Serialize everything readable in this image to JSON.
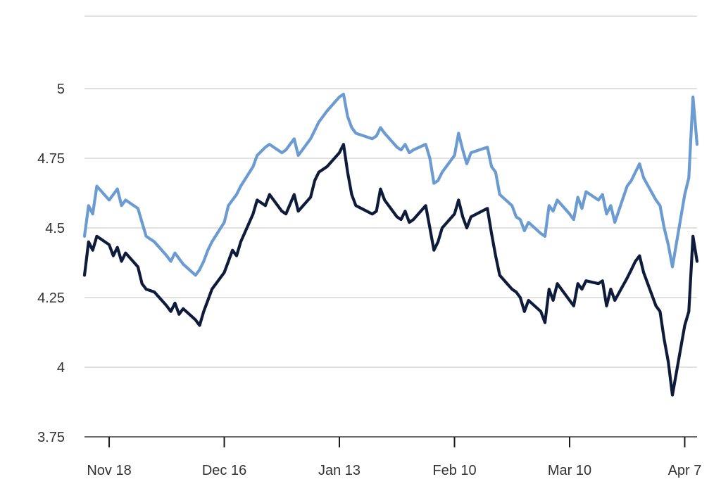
{
  "chart_data": {
    "type": "line",
    "title": "",
    "xlabel": "",
    "ylabel": "",
    "ylim": [
      3.75,
      5.25
    ],
    "yticks": [
      3.75,
      4,
      4.25,
      4.5,
      4.75,
      5
    ],
    "ytick_labels": [
      "3.75",
      "4",
      "4.25",
      "4.5",
      "4.75",
      "5"
    ],
    "x_range": [
      "2024-11-12",
      "2025-04-10"
    ],
    "xticks": [
      "2024-11-18",
      "2024-12-16",
      "2025-01-13",
      "2025-02-10",
      "2025-03-10",
      "2025-04-07"
    ],
    "xtick_labels": [
      "Nov 18",
      "Dec 16",
      "Jan 13",
      "Feb 10",
      "Mar 10",
      "Apr 7"
    ],
    "grid": true,
    "legend": "none",
    "colors": {
      "upper": "#6b9bd1",
      "lower": "#0f1b3a",
      "grid": "#cfcfcf",
      "axis": "#3a3a3a"
    },
    "series": [
      {
        "color": "#6b9bd1",
        "x": [
          "2024-11-12",
          "2024-11-13",
          "2024-11-14",
          "2024-11-15",
          "2024-11-18",
          "2024-11-19",
          "2024-11-20",
          "2024-11-21",
          "2024-11-22",
          "2024-11-25",
          "2024-11-26",
          "2024-11-27",
          "2024-11-29",
          "2024-12-02",
          "2024-12-03",
          "2024-12-04",
          "2024-12-05",
          "2024-12-06",
          "2024-12-09",
          "2024-12-10",
          "2024-12-11",
          "2024-12-12",
          "2024-12-13",
          "2024-12-16",
          "2024-12-17",
          "2024-12-18",
          "2024-12-19",
          "2024-12-20",
          "2024-12-23",
          "2024-12-24",
          "2024-12-26",
          "2024-12-27",
          "2024-12-30",
          "2024-12-31",
          "2025-01-02",
          "2025-01-03",
          "2025-01-06",
          "2025-01-07",
          "2025-01-08",
          "2025-01-10",
          "2025-01-13",
          "2025-01-14",
          "2025-01-15",
          "2025-01-16",
          "2025-01-17",
          "2025-01-21",
          "2025-01-22",
          "2025-01-23",
          "2025-01-24",
          "2025-01-27",
          "2025-01-28",
          "2025-01-29",
          "2025-01-30",
          "2025-01-31",
          "2025-02-03",
          "2025-02-04",
          "2025-02-05",
          "2025-02-06",
          "2025-02-07",
          "2025-02-10",
          "2025-02-11",
          "2025-02-12",
          "2025-02-13",
          "2025-02-14",
          "2025-02-18",
          "2025-02-19",
          "2025-02-20",
          "2025-02-21",
          "2025-02-24",
          "2025-02-25",
          "2025-02-26",
          "2025-02-27",
          "2025-02-28",
          "2025-03-03",
          "2025-03-04",
          "2025-03-05",
          "2025-03-06",
          "2025-03-07",
          "2025-03-10",
          "2025-03-11",
          "2025-03-12",
          "2025-03-13",
          "2025-03-14",
          "2025-03-17",
          "2025-03-18",
          "2025-03-19",
          "2025-03-20",
          "2025-03-21",
          "2025-03-24",
          "2025-03-25",
          "2025-03-26",
          "2025-03-27",
          "2025-03-28",
          "2025-03-31",
          "2025-04-01",
          "2025-04-02",
          "2025-04-03",
          "2025-04-04",
          "2025-04-07",
          "2025-04-08",
          "2025-04-09",
          "2025-04-10"
        ],
        "values": [
          4.47,
          4.58,
          4.55,
          4.65,
          4.6,
          4.62,
          4.64,
          4.58,
          4.6,
          4.57,
          4.52,
          4.47,
          4.45,
          4.4,
          4.38,
          4.41,
          4.39,
          4.37,
          4.33,
          4.35,
          4.38,
          4.42,
          4.45,
          4.52,
          4.58,
          4.6,
          4.62,
          4.65,
          4.72,
          4.76,
          4.79,
          4.8,
          4.77,
          4.78,
          4.82,
          4.76,
          4.82,
          4.85,
          4.88,
          4.92,
          4.97,
          4.98,
          4.9,
          4.86,
          4.84,
          4.82,
          4.83,
          4.86,
          4.84,
          4.79,
          4.78,
          4.8,
          4.77,
          4.78,
          4.8,
          4.75,
          4.66,
          4.67,
          4.7,
          4.76,
          4.84,
          4.78,
          4.73,
          4.77,
          4.79,
          4.72,
          4.7,
          4.62,
          4.58,
          4.54,
          4.53,
          4.49,
          4.52,
          4.48,
          4.47,
          4.58,
          4.56,
          4.6,
          4.55,
          4.53,
          4.61,
          4.57,
          4.63,
          4.6,
          4.62,
          4.55,
          4.58,
          4.52,
          4.65,
          4.67,
          4.7,
          4.73,
          4.68,
          4.6,
          4.58,
          4.5,
          4.44,
          4.36,
          4.62,
          4.68,
          4.97,
          4.8
        ]
      },
      {
        "color": "#0f1b3a",
        "x": [
          "2024-11-12",
          "2024-11-13",
          "2024-11-14",
          "2024-11-15",
          "2024-11-18",
          "2024-11-19",
          "2024-11-20",
          "2024-11-21",
          "2024-11-22",
          "2024-11-25",
          "2024-11-26",
          "2024-11-27",
          "2024-11-29",
          "2024-12-02",
          "2024-12-03",
          "2024-12-04",
          "2024-12-05",
          "2024-12-06",
          "2024-12-09",
          "2024-12-10",
          "2024-12-11",
          "2024-12-12",
          "2024-12-13",
          "2024-12-16",
          "2024-12-17",
          "2024-12-18",
          "2024-12-19",
          "2024-12-20",
          "2024-12-23",
          "2024-12-24",
          "2024-12-26",
          "2024-12-27",
          "2024-12-30",
          "2024-12-31",
          "2025-01-02",
          "2025-01-03",
          "2025-01-06",
          "2025-01-07",
          "2025-01-08",
          "2025-01-10",
          "2025-01-13",
          "2025-01-14",
          "2025-01-15",
          "2025-01-16",
          "2025-01-17",
          "2025-01-21",
          "2025-01-22",
          "2025-01-23",
          "2025-01-24",
          "2025-01-27",
          "2025-01-28",
          "2025-01-29",
          "2025-01-30",
          "2025-01-31",
          "2025-02-03",
          "2025-02-04",
          "2025-02-05",
          "2025-02-06",
          "2025-02-07",
          "2025-02-10",
          "2025-02-11",
          "2025-02-12",
          "2025-02-13",
          "2025-02-14",
          "2025-02-18",
          "2025-02-19",
          "2025-02-20",
          "2025-02-21",
          "2025-02-24",
          "2025-02-25",
          "2025-02-26",
          "2025-02-27",
          "2025-02-28",
          "2025-03-03",
          "2025-03-04",
          "2025-03-05",
          "2025-03-06",
          "2025-03-07",
          "2025-03-10",
          "2025-03-11",
          "2025-03-12",
          "2025-03-13",
          "2025-03-14",
          "2025-03-17",
          "2025-03-18",
          "2025-03-19",
          "2025-03-20",
          "2025-03-21",
          "2025-03-24",
          "2025-03-25",
          "2025-03-26",
          "2025-03-27",
          "2025-03-28",
          "2025-03-31",
          "2025-04-01",
          "2025-04-02",
          "2025-04-03",
          "2025-04-04",
          "2025-04-07",
          "2025-04-08",
          "2025-04-09",
          "2025-04-10"
        ],
        "values": [
          4.33,
          4.45,
          4.42,
          4.47,
          4.44,
          4.4,
          4.43,
          4.38,
          4.41,
          4.36,
          4.3,
          4.28,
          4.27,
          4.22,
          4.2,
          4.23,
          4.19,
          4.21,
          4.17,
          4.15,
          4.2,
          4.24,
          4.28,
          4.34,
          4.38,
          4.42,
          4.4,
          4.45,
          4.55,
          4.6,
          4.58,
          4.62,
          4.56,
          4.55,
          4.62,
          4.56,
          4.61,
          4.67,
          4.7,
          4.72,
          4.77,
          4.8,
          4.7,
          4.62,
          4.58,
          4.55,
          4.56,
          4.64,
          4.6,
          4.54,
          4.53,
          4.56,
          4.52,
          4.53,
          4.58,
          4.5,
          4.42,
          4.45,
          4.5,
          4.55,
          4.6,
          4.54,
          4.5,
          4.54,
          4.57,
          4.48,
          4.4,
          4.33,
          4.28,
          4.27,
          4.25,
          4.2,
          4.24,
          4.2,
          4.16,
          4.28,
          4.24,
          4.3,
          4.24,
          4.22,
          4.3,
          4.28,
          4.31,
          4.3,
          4.31,
          4.22,
          4.28,
          4.24,
          4.32,
          4.35,
          4.38,
          4.4,
          4.34,
          4.22,
          4.2,
          4.1,
          4.02,
          3.9,
          4.15,
          4.2,
          4.47,
          4.38
        ]
      }
    ]
  }
}
